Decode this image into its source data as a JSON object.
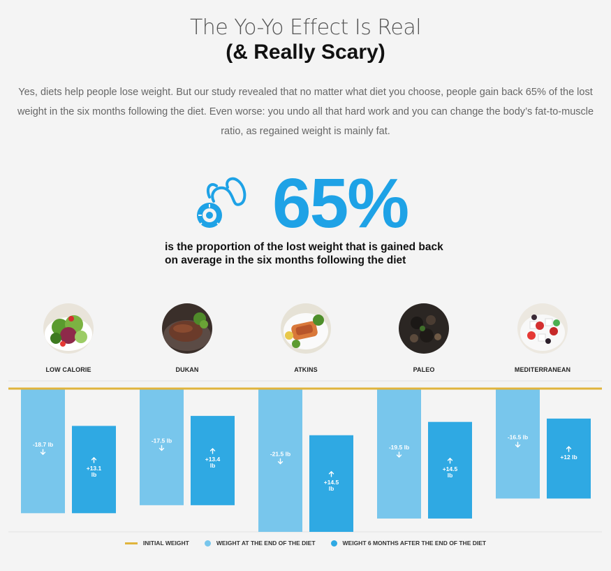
{
  "header": {
    "title_line1": "The Yo-Yo Effect Is Real",
    "title_line2": "(& Really Scary)",
    "intro": "Yes, diets help people lose weight. But our study revealed that no matter what diet you choose, people gain back 65% of the lost weight in the six months following the diet. Even worse: you undo all that hard work and you can change the body’s fat-to-muscle ratio, as regained weight is mainly fat."
  },
  "stat": {
    "value": "65%",
    "caption_line1": "is the proportion of the lost weight that is gained back",
    "caption_line2": "on average in the six months following the diet",
    "icon": "measuring-tape-icon"
  },
  "colors": {
    "accent": "#1ea2e6",
    "initial_line": "#e0b43c",
    "end_of_diet": "#78c6ec",
    "six_months_after": "#2fa9e3"
  },
  "chart_data": {
    "type": "bar",
    "categories": [
      "LOW CALORIE",
      "DUKAN",
      "ATKINS",
      "PALEO",
      "MEDITERRANEAN"
    ],
    "series": [
      {
        "name": "WEIGHT AT THE END OF THE DIET",
        "values": [
          -18.7,
          -17.5,
          -21.5,
          -19.5,
          -16.5
        ],
        "labels": [
          "-18.7 lb",
          "-17.5 lb",
          "-21.5 lb",
          "-19.5 lb",
          "-16.5 lb"
        ]
      },
      {
        "name": "WEIGHT 6 MONTHS AFTER THE END OF THE DIET",
        "values": [
          13.1,
          13.4,
          14.5,
          14.5,
          12
        ],
        "labels": [
          "+13.1 lb",
          "+13.4 lb",
          "+14.5 lb",
          "+14.5 lb",
          "+12 lb"
        ]
      }
    ],
    "baseline_name": "INITIAL WEIGHT",
    "ylim": [
      -21.5,
      0
    ],
    "legend_position": "bottom"
  }
}
